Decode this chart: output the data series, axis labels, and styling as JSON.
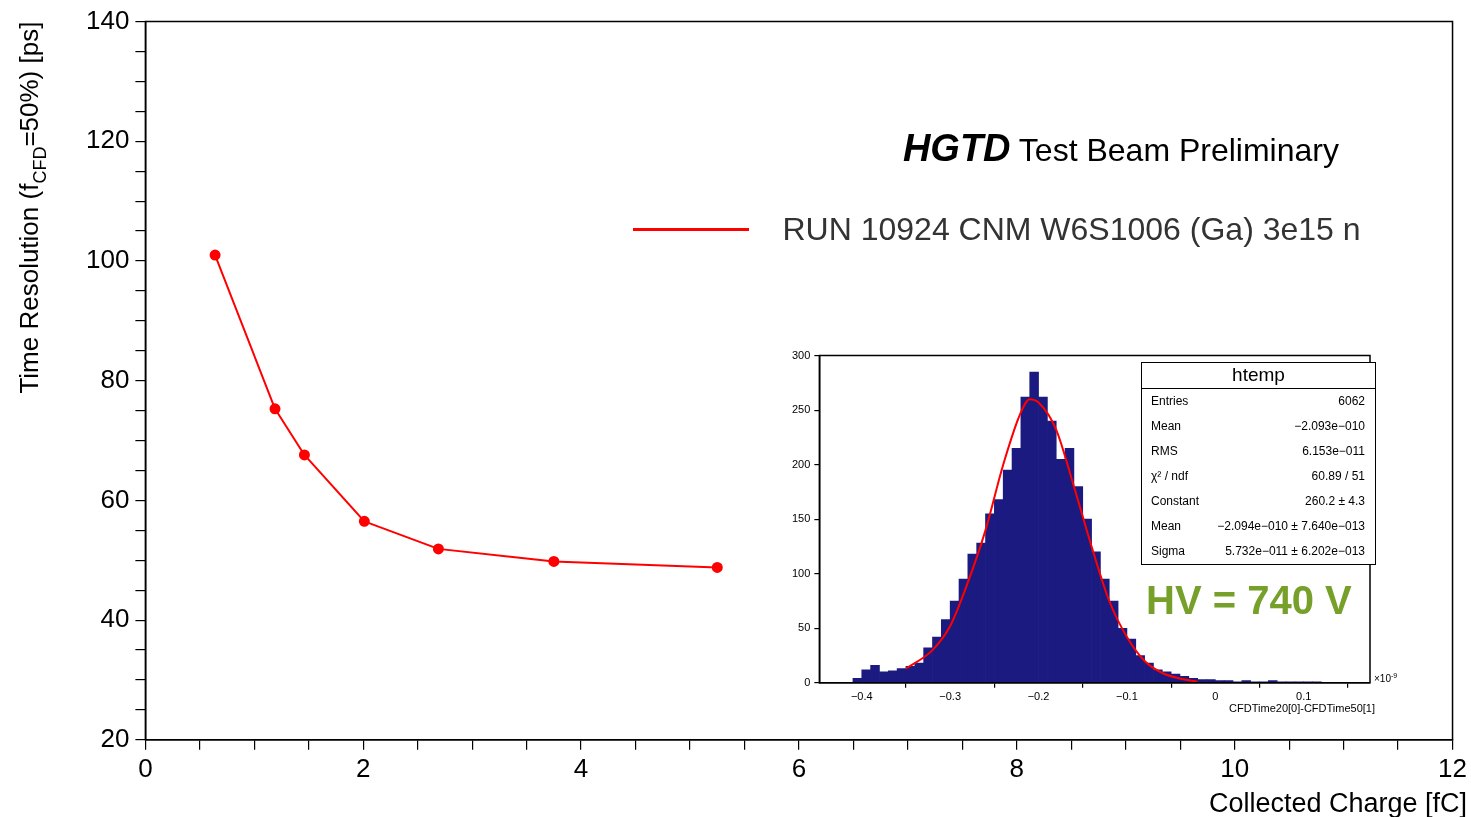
{
  "chart_data": [
    {
      "type": "line",
      "title": "HGTD Test Beam Preliminary",
      "xlabel": "Collected Charge [fC]",
      "ylabel": "Time Resolution (f$_{CFD}$=50%) [ps]",
      "x": [
        0.64,
        1.19,
        1.46,
        2.01,
        2.69,
        3.75,
        5.25
      ],
      "series": [
        {
          "name": "RUN 10924 CNM W6S1006 (Ga) 3e15 n",
          "color": "#ff0000",
          "values": [
            101,
            75.3,
            67.6,
            56.5,
            51.9,
            49.8,
            48.8
          ]
        }
      ],
      "xlim": [
        0,
        12
      ],
      "xticks": [
        0,
        {
          "value": 0.5,
          "label": null
        },
        {
          "value": 1,
          "label": null
        },
        {
          "value": 1.5,
          "label": null
        },
        2,
        {
          "value": 2.5,
          "label": null
        },
        {
          "value": 3,
          "label": null
        },
        {
          "value": 3.5,
          "label": null
        },
        4,
        {
          "value": 4.5,
          "label": null
        },
        {
          "value": 5,
          "label": null
        },
        {
          "value": 5.5,
          "label": null
        },
        6,
        {
          "value": 6.5,
          "label": null
        },
        {
          "value": 7,
          "label": null
        },
        {
          "value": 7.5,
          "label": null
        },
        8,
        {
          "value": 8.5,
          "label": null
        },
        {
          "value": 9,
          "label": null
        },
        {
          "value": 9.5,
          "label": null
        },
        10,
        {
          "value": 10.5,
          "label": null
        },
        {
          "value": 11,
          "label": null
        },
        {
          "value": 11.5,
          "label": null
        },
        12
      ],
      "ylim": [
        20,
        140
      ],
      "yticks": [
        20,
        {
          "value": 25,
          "label": null
        },
        {
          "value": 30,
          "label": null
        },
        {
          "value": 35,
          "label": null
        },
        40,
        {
          "value": 45,
          "label": null
        },
        {
          "value": 50,
          "label": null
        },
        {
          "value": 55,
          "label": null
        },
        60,
        {
          "value": 65,
          "label": null
        },
        {
          "value": 70,
          "label": null
        },
        {
          "value": 75,
          "label": null
        },
        80,
        {
          "value": 85,
          "label": null
        },
        {
          "value": 90,
          "label": null
        },
        {
          "value": 95,
          "label": null
        },
        100,
        {
          "value": 105,
          "label": null
        },
        {
          "value": 110,
          "label": null
        },
        {
          "value": 115,
          "label": null
        },
        120,
        {
          "value": 125,
          "label": null
        },
        {
          "value": 130,
          "label": null
        },
        {
          "value": 135,
          "label": null
        },
        140
      ],
      "grid": false,
      "legend": "top right",
      "marker": "circle",
      "line_style": "solid"
    },
    {
      "type": "histogram",
      "xlabel": "CFDTime20[0]-CFDTime50[1]",
      "series": [
        {
          "type": "histogram",
          "color": "#1a1a80",
          "bins": [
            -0.41,
            -0.4,
            -0.39,
            -0.38,
            -0.37,
            -0.36,
            -0.35,
            -0.34,
            -0.33,
            -0.32,
            -0.31,
            -0.3,
            -0.29,
            -0.28,
            -0.27,
            -0.26,
            -0.25,
            -0.24,
            -0.23,
            -0.22,
            -0.21,
            -0.2,
            -0.19,
            -0.18,
            -0.17,
            -0.16,
            -0.15,
            -0.14,
            -0.13,
            -0.12,
            -0.11,
            -0.1,
            -0.09,
            -0.08,
            -0.07,
            -0.06,
            -0.05,
            -0.04,
            -0.03,
            -0.02,
            -0.01,
            0,
            0.01,
            0.02,
            0.03,
            0.04,
            0.05,
            0.06,
            0.07,
            0.08,
            0.09,
            0.1,
            0.11,
            0.12,
            0.13
          ],
          "values": [
            4,
            12,
            16,
            10,
            11,
            13,
            15,
            18,
            32,
            42,
            58,
            75,
            95,
            118,
            128,
            155,
            168,
            195,
            215,
            262,
            285,
            262,
            240,
            205,
            215,
            180,
            150,
            120,
            95,
            75,
            50,
            40,
            25,
            18,
            12,
            10,
            8,
            6,
            4,
            3,
            3,
            2,
            2,
            1,
            2,
            1,
            1,
            2,
            1,
            1,
            1,
            1,
            1,
            0
          ]
        },
        {
          "type": "line",
          "color": "#ff0000",
          "x": [
            -0.35,
            -0.32,
            -0.3,
            -0.28,
            -0.26,
            -0.24,
            -0.22,
            -0.21,
            -0.2,
            -0.18,
            -0.16,
            -0.14,
            -0.12,
            -0.1,
            -0.08,
            -0.06,
            -0.04,
            -0.02
          ],
          "values": [
            13,
            30,
            52,
            92,
            140,
            200,
            248,
            260,
            257,
            232,
            180,
            125,
            75,
            42,
            20,
            9,
            4,
            1
          ]
        }
      ],
      "xlim": [
        -0.448,
        0.175
      ],
      "xticks": [
        {
          "value": -0.4,
          "label": "−0.4"
        },
        {
          "value": -0.3,
          "label": "−0.3"
        },
        {
          "value": -0.2,
          "label": "−0.2"
        },
        {
          "value": -0.1,
          "label": "−0.1"
        },
        0,
        0.1
      ],
      "ylim": [
        0,
        300
      ],
      "yticks": [
        0,
        50,
        100,
        150,
        200,
        250,
        300
      ],
      "grid": false,
      "marker": "none",
      "annotations": [
        "htemp",
        "Entries",
        "6062",
        "Mean",
        "−2.093e−010",
        "RMS",
        "6.153e−011",
        "χ² / ndf",
        "60.89 / 51",
        "Constant",
        "260.2 ± 4.3",
        "Mean",
        "−2.094e−010 ± 7.640e−013",
        "Sigma",
        "5.732e−011 ± 6.202e−013",
        "HV = 740 V",
        "×10$^{-9}$"
      ]
    }
  ]
}
